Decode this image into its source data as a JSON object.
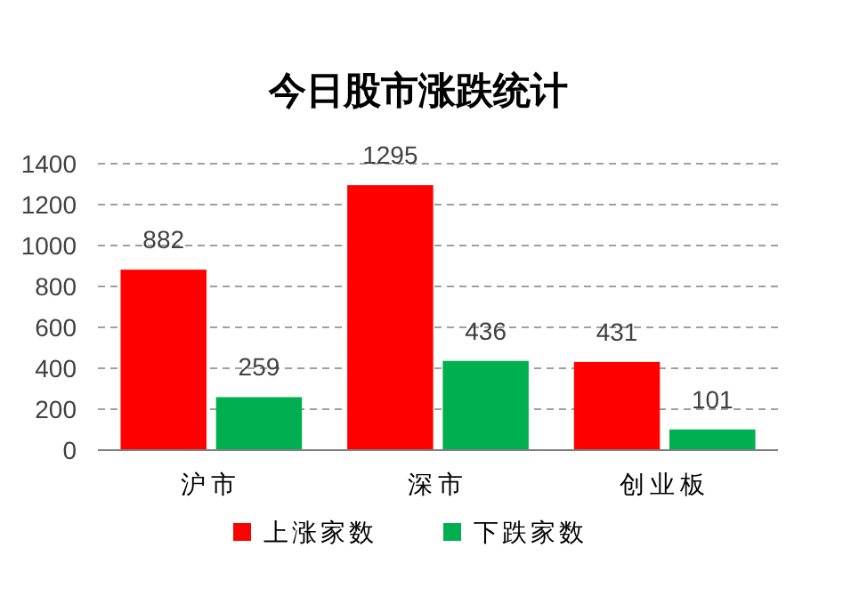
{
  "chart_data": {
    "type": "bar",
    "title": "今日股市涨跌统计",
    "categories": [
      "沪市",
      "深市",
      "创业板"
    ],
    "series": [
      {
        "name": "上涨家数",
        "color": "#ff0000",
        "values": [
          882,
          1295,
          431
        ]
      },
      {
        "name": "下跌家数",
        "color": "#00b050",
        "values": [
          259,
          436,
          101
        ]
      }
    ],
    "ylim": [
      0,
      1400
    ],
    "yticks": [
      0,
      200,
      400,
      600,
      800,
      1000,
      1200,
      1400
    ],
    "grid": "y",
    "legend": "bottom",
    "data_labels": true
  }
}
